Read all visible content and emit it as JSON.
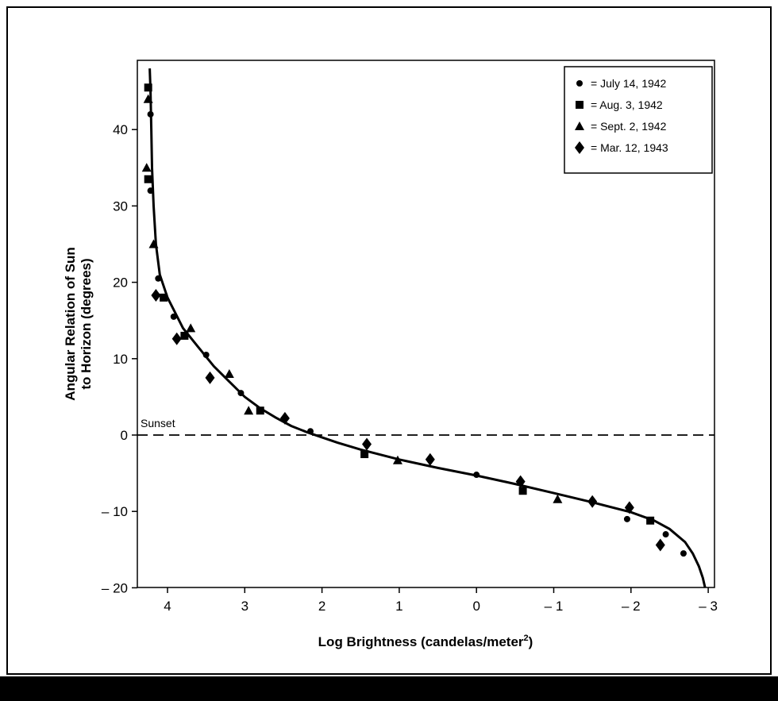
{
  "chart_data": {
    "type": "scatter",
    "title": "",
    "xlabel": "Log Brightness (candelas/meter",
    "xlabel_sup": "2",
    "xlabel_close": ")",
    "ylabel_line1": "Angular Relation of Sun",
    "ylabel_line2": "to Horizon (degrees)",
    "x_reversed": true,
    "xlim": [
      4.5,
      -3.3
    ],
    "ylim": [
      -20,
      49
    ],
    "x_ticks": [
      {
        "value": 4,
        "label": "4"
      },
      {
        "value": 3,
        "label": "3"
      },
      {
        "value": 2,
        "label": "2"
      },
      {
        "value": 1,
        "label": "1"
      },
      {
        "value": 0,
        "label": "0"
      },
      {
        "value": -1,
        "label": "– 1"
      },
      {
        "value": -2,
        "label": "– 2"
      },
      {
        "value": -3,
        "label": "– 3"
      }
    ],
    "y_ticks": [
      {
        "value": 40,
        "label": "40"
      },
      {
        "value": 30,
        "label": "30"
      },
      {
        "value": 20,
        "label": "20"
      },
      {
        "value": 10,
        "label": "10"
      },
      {
        "value": 0,
        "label": "0"
      },
      {
        "value": -10,
        "label": "– 10"
      },
      {
        "value": -20,
        "label": "– 20"
      }
    ],
    "reference_line": {
      "y": 0,
      "style": "dashed",
      "label": "Sunset"
    },
    "legend_position": "top-right",
    "series": [
      {
        "name": "= July 14, 1942",
        "marker": "circle",
        "points": [
          [
            4.22,
            42
          ],
          [
            4.22,
            32
          ],
          [
            4.12,
            20.5
          ],
          [
            3.92,
            15.5
          ],
          [
            3.5,
            10.5
          ],
          [
            3.05,
            5.5
          ],
          [
            2.15,
            0.5
          ],
          [
            0,
            -5.2
          ],
          [
            -1.95,
            -11
          ],
          [
            -2.45,
            -13
          ],
          [
            -2.68,
            -15.5
          ]
        ]
      },
      {
        "name": "= Aug.  3, 1942",
        "marker": "square",
        "points": [
          [
            4.25,
            45.5
          ],
          [
            4.25,
            33.5
          ],
          [
            4.05,
            18
          ],
          [
            3.78,
            13
          ],
          [
            2.8,
            3.2
          ],
          [
            1.45,
            -2.5
          ],
          [
            -0.6,
            -7.3
          ],
          [
            -2.25,
            -11.2
          ]
        ]
      },
      {
        "name": "= Sept. 2, 1942",
        "marker": "triangle",
        "points": [
          [
            4.25,
            44
          ],
          [
            4.27,
            35
          ],
          [
            4.18,
            25
          ],
          [
            3.7,
            14
          ],
          [
            3.2,
            8
          ],
          [
            2.95,
            3.2
          ],
          [
            1.02,
            -3.3
          ],
          [
            -1.05,
            -8.4
          ]
        ]
      },
      {
        "name": "= Mar. 12, 1943",
        "marker": "diamond",
        "points": [
          [
            4.15,
            18.3
          ],
          [
            3.88,
            12.6
          ],
          [
            3.45,
            7.5
          ],
          [
            2.48,
            2.2
          ],
          [
            1.42,
            -1.2
          ],
          [
            0.6,
            -3.2
          ],
          [
            -0.57,
            -6.1
          ],
          [
            -1.5,
            -8.7
          ],
          [
            -1.98,
            -9.5
          ],
          [
            -2.38,
            -14.4
          ]
        ]
      }
    ],
    "fit_curve": [
      [
        4.23,
        48
      ],
      [
        4.22,
        45
      ],
      [
        4.21,
        40
      ],
      [
        4.2,
        35
      ],
      [
        4.18,
        30
      ],
      [
        4.15,
        25
      ],
      [
        4.1,
        21
      ],
      [
        4.0,
        18
      ],
      [
        3.8,
        14
      ],
      [
        3.6,
        11.5
      ],
      [
        3.4,
        9
      ],
      [
        3.2,
        7
      ],
      [
        3.0,
        5
      ],
      [
        2.8,
        3.5
      ],
      [
        2.6,
        2.3
      ],
      [
        2.4,
        1.2
      ],
      [
        2.2,
        0.4
      ],
      [
        2.0,
        -0.3
      ],
      [
        1.8,
        -1.0
      ],
      [
        1.5,
        -1.9
      ],
      [
        1.0,
        -3.2
      ],
      [
        0.5,
        -4.3
      ],
      [
        0.0,
        -5.3
      ],
      [
        -0.5,
        -6.4
      ],
      [
        -1.0,
        -7.6
      ],
      [
        -1.5,
        -8.8
      ],
      [
        -2.0,
        -10.1
      ],
      [
        -2.3,
        -11.2
      ],
      [
        -2.5,
        -12.3
      ],
      [
        -2.7,
        -14
      ],
      [
        -2.8,
        -15.5
      ],
      [
        -2.88,
        -17.2
      ],
      [
        -2.93,
        -18.7
      ],
      [
        -2.96,
        -20
      ]
    ]
  }
}
